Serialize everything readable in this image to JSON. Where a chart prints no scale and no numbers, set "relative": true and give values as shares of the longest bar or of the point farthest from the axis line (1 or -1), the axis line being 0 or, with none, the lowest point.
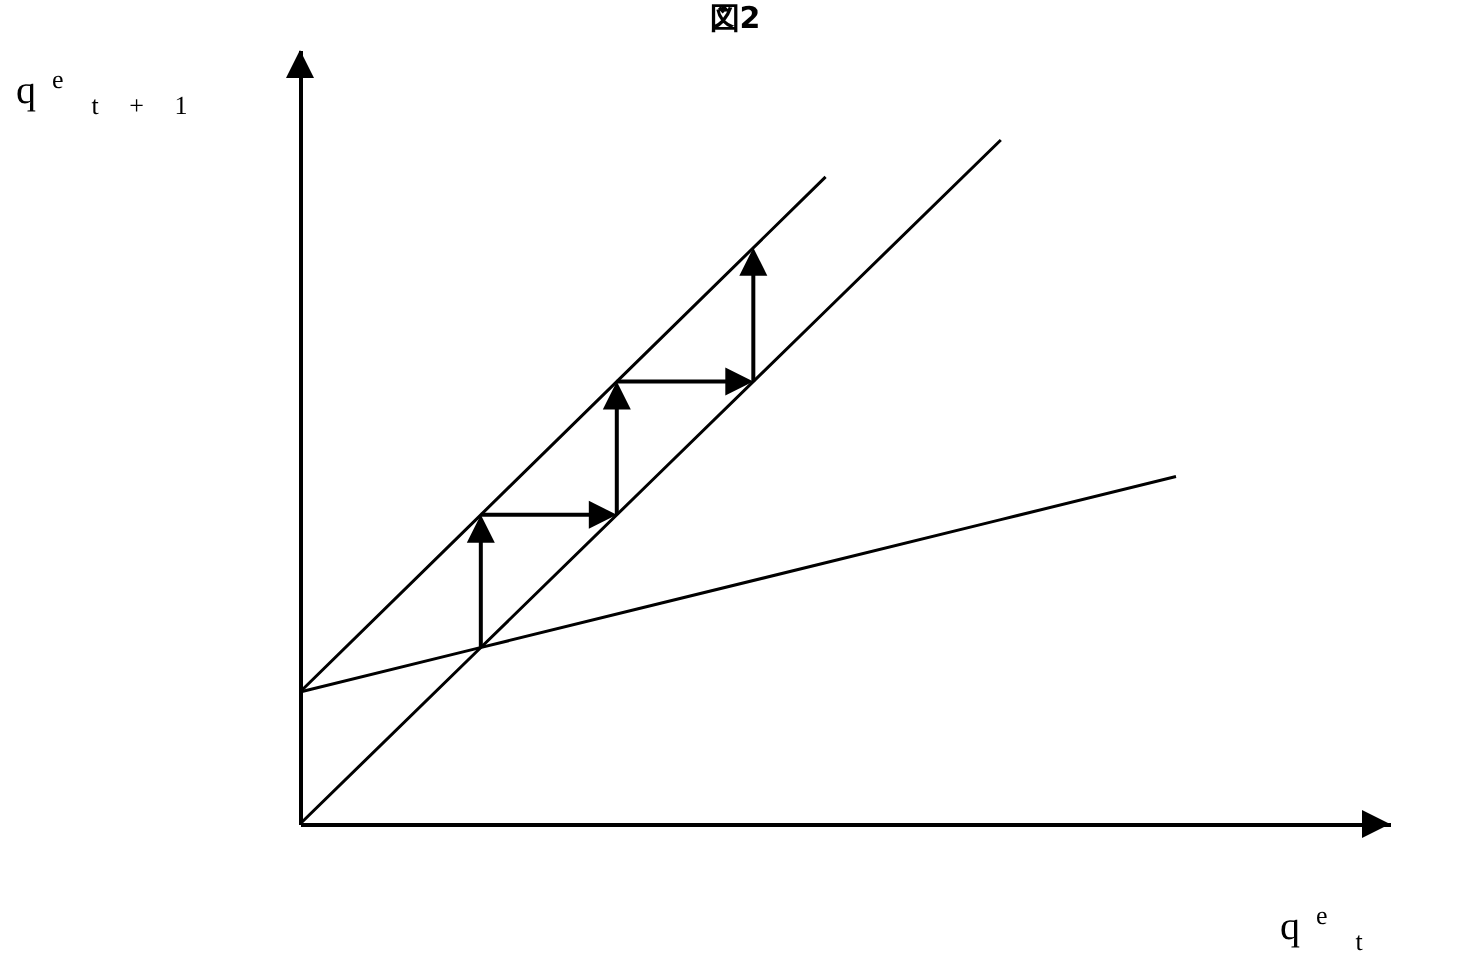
{
  "chart_data": {
    "type": "line",
    "title": "図2",
    "xlabel": "q$^{e}$$_{t}$",
    "ylabel": "q$^{e}$$_{t + 1}$",
    "relative": true,
    "grid": false,
    "marker": "none",
    "line_style": "solid",
    "categories": [
      null,
      null,
      null,
      null,
      null,
      null
    ],
    "series": [
      {
        "color": "#000000",
        "values": [
          0,
          0.25,
          0.5,
          0.75,
          1,
          null
        ]
      },
      {
        "color": "#000000",
        "values": [
          0.193,
          0.444,
          0.695,
          0.946,
          null,
          null
        ]
      },
      {
        "color": "#000000",
        "values": [
          0.193,
          0.256,
          0.319,
          0.382,
          0.445,
          0.508
        ]
      }
    ]
  }
}
